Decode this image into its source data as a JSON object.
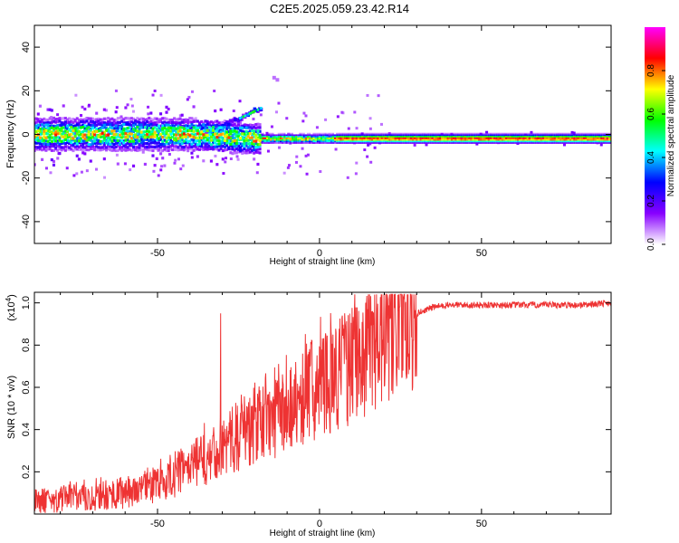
{
  "title": "C2E5.2025.059.23.42.R14",
  "chart_data": [
    {
      "type": "heatmap",
      "xlabel": "Height of straight line (km)",
      "ylabel": "Frequency (Hz)",
      "xlim": [
        -88,
        90
      ],
      "ylim": [
        -50,
        50
      ],
      "xticks": [
        -50,
        0,
        50
      ],
      "yticks": [
        -40,
        -20,
        0,
        20,
        40
      ],
      "grid": false,
      "colorbar": {
        "label": "Normalized spectral amplitude",
        "range": [
          0,
          1
        ],
        "ticks": [
          0.0,
          0.2,
          0.4,
          0.6,
          0.8
        ],
        "tick_labels": [
          "0.0",
          "0.2",
          "0.4",
          "0.6",
          "0.8"
        ],
        "colormap": [
          "#ffffff",
          "#8800ff",
          "#0000ff",
          "#00ffff",
          "#00ff00",
          "#ffff00",
          "#ff0000",
          "#ff00ff"
        ]
      },
      "features": {
        "noisy_region_x": [
          -88,
          -20
        ],
        "noisy_region_center_hz": 0,
        "noisy_region_halfwidth_hz": 6,
        "rising_arm_x": [
          -35,
          -18
        ],
        "rising_arm_max_hz": 12,
        "carrier_region_x": [
          -18,
          90
        ],
        "carrier_hz": -2,
        "carrier_amplitude": 0.9
      }
    },
    {
      "type": "line",
      "xlabel": "Height of straight line (km)",
      "ylabel": "SNR (10 * v/v)",
      "scale_note": "(x10",
      "scale_exp": "4",
      "scale_close": ")",
      "xlim": [
        -88,
        90
      ],
      "ylim": [
        0,
        1.05
      ],
      "xticks": [
        -50,
        0,
        50
      ],
      "yticks": [
        0.2,
        0.4,
        0.6,
        0.8,
        1.0
      ],
      "ytick_labels": [
        "0.2",
        "0.4",
        "0.6",
        "0.8",
        "1.0"
      ],
      "color": "#ee3333",
      "grid": false,
      "series": [
        {
          "x": [
            -88,
            -80,
            -70,
            -60,
            -50,
            -45,
            -40,
            -35,
            -30,
            -25,
            -20,
            -15,
            -10,
            -5,
            0,
            5,
            10,
            15,
            20,
            25,
            30,
            35,
            40,
            50,
            60,
            70,
            80,
            90
          ],
          "y": [
            0.06,
            0.07,
            0.08,
            0.1,
            0.14,
            0.18,
            0.22,
            0.27,
            0.32,
            0.37,
            0.41,
            0.45,
            0.5,
            0.56,
            0.61,
            0.66,
            0.71,
            0.77,
            0.84,
            0.9,
            0.95,
            0.98,
            0.99,
            0.99,
            0.99,
            0.99,
            0.99,
            1.0
          ]
        }
      ]
    }
  ]
}
